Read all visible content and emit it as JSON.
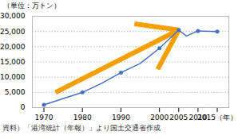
{
  "chart_data": {
    "type": "line",
    "ylabel": "（単位：万トン）",
    "caption": "資料）「港湾統計（年報）」より国土交通省作成",
    "series": [
      {
        "type": "line",
        "color": "#4472C4",
        "x": [
          1970,
          1980,
          1985,
          1990,
          1995,
          2000,
          2005,
          2007,
          2010,
          2015
        ],
        "values": [
          900,
          5000,
          8000,
          11500,
          14500,
          19500,
          25500,
          23500,
          25200,
          25000
        ]
      },
      {
        "type": "scatter",
        "marker": "circle",
        "color": "#4472C4",
        "x": [
          1970,
          1980,
          1990,
          2000,
          2005,
          2010,
          2015
        ],
        "values": [
          900,
          5000,
          11500,
          19500,
          25500,
          25200,
          25000
        ]
      }
    ],
    "annotations": [
      {
        "type": "arrow",
        "x1": 1973,
        "y1": 5000,
        "x2": 2005,
        "y2": 25500,
        "color": "#F5A000"
      }
    ],
    "xlim": [
      1967,
      2018
    ],
    "xticks": [
      1970,
      1980,
      1990,
      2000,
      2005,
      2010,
      {
        "value": 2015,
        "label": "2015（年）"
      }
    ],
    "ylim": [
      0,
      30000
    ],
    "yticks": [
      0,
      {
        "value": 5000,
        "label": "5,000"
      },
      {
        "value": 10000,
        "label": "10,000"
      },
      {
        "value": 15000,
        "label": "15,000"
      },
      {
        "value": 20000,
        "label": "20,000"
      },
      {
        "value": 25000,
        "label": "25,000"
      },
      {
        "value": 30000,
        "label": "30,000"
      }
    ],
    "grid": "y"
  }
}
